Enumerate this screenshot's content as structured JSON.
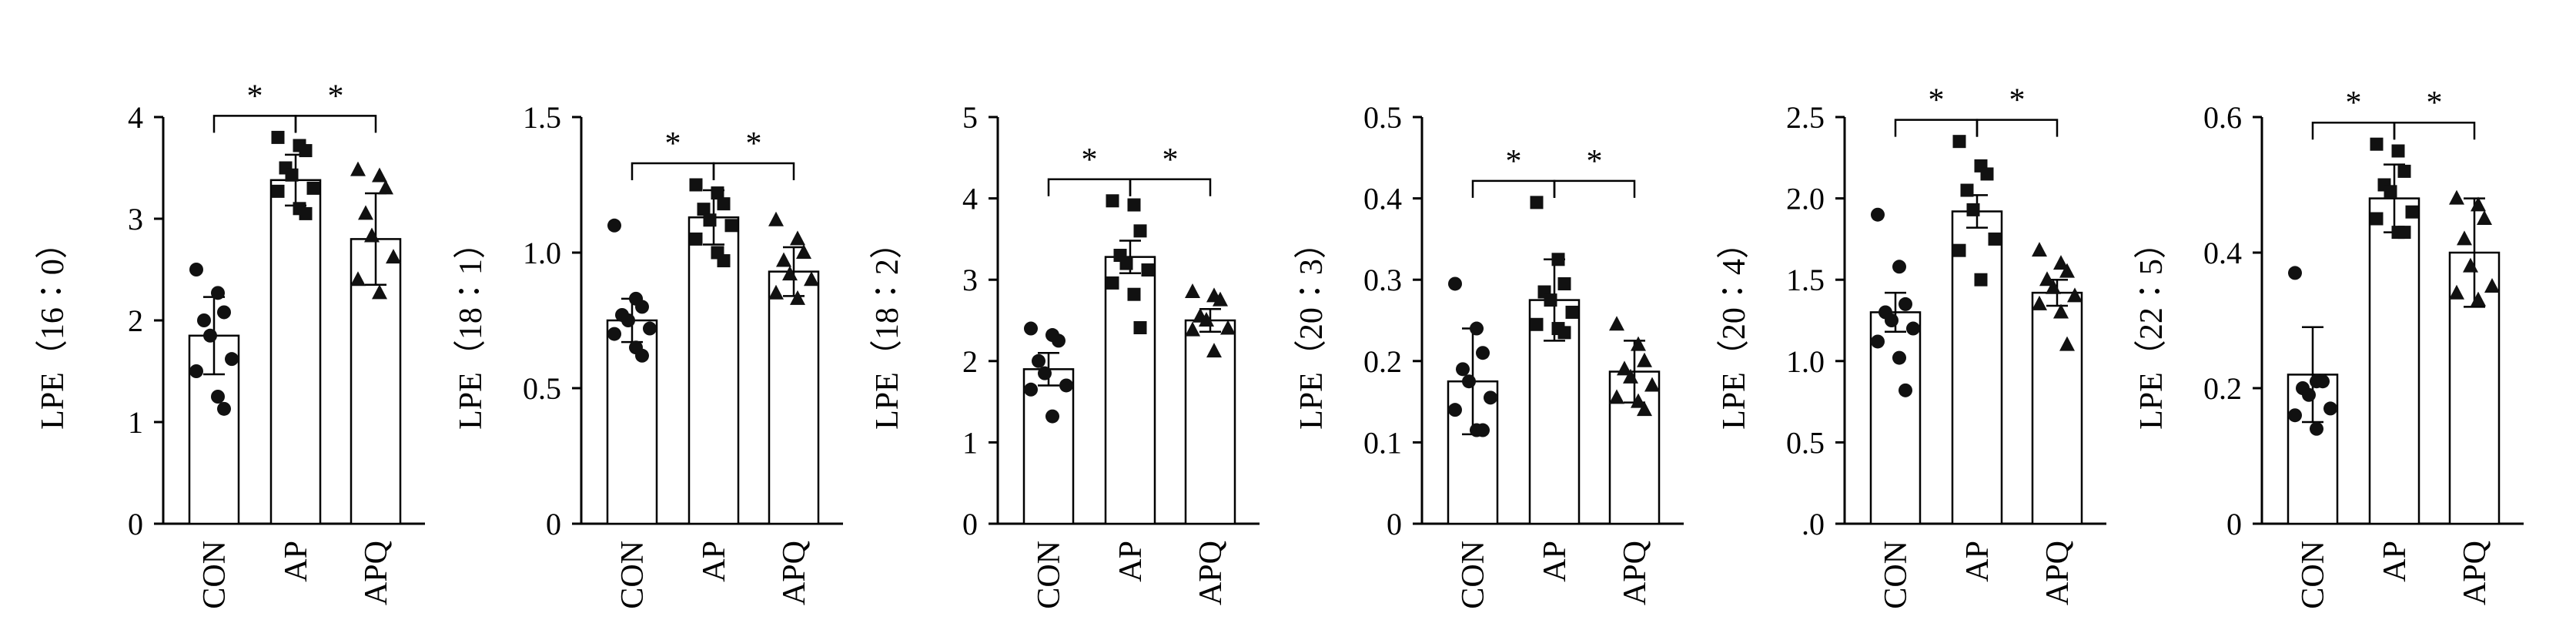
{
  "chart_data": [
    {
      "type": "bar",
      "ylabel": "LPE（16∶0）",
      "categories": [
        "CON",
        "AP",
        "APQ"
      ],
      "ylim": [
        0,
        4
      ],
      "yticks": [
        0,
        1,
        2,
        3,
        4
      ],
      "ytick_labels": [
        "0",
        "1",
        "2",
        "3",
        "4"
      ],
      "means": [
        1.85,
        3.38,
        2.8
      ],
      "sd": [
        0.38,
        0.25,
        0.45
      ],
      "points": [
        [
          2.5,
          2.27,
          2.08,
          2.0,
          1.85,
          1.62,
          1.5,
          1.25,
          1.13
        ],
        [
          3.8,
          3.72,
          3.67,
          3.5,
          3.43,
          3.3,
          3.27,
          3.1,
          3.05
        ],
        [
          3.48,
          3.42,
          3.3,
          3.05,
          2.83,
          2.62,
          2.4,
          2.27
        ]
      ],
      "significance": [
        {
          "from": 0,
          "to": 1,
          "label": "*"
        },
        {
          "from": 1,
          "to": 2,
          "label": "*"
        }
      ]
    },
    {
      "type": "bar",
      "ylabel": "LPE（18∶1）",
      "categories": [
        "CON",
        "AP",
        "APQ"
      ],
      "ylim": [
        0,
        1.5
      ],
      "yticks": [
        0,
        0.5,
        1.0,
        1.5
      ],
      "ytick_labels": [
        "0",
        "0.5",
        "1.0",
        "1.5"
      ],
      "means": [
        0.75,
        1.13,
        0.93
      ],
      "sd": [
        0.08,
        0.1,
        0.09
      ],
      "points": [
        [
          1.1,
          0.83,
          0.8,
          0.77,
          0.75,
          0.72,
          0.7,
          0.65,
          0.62
        ],
        [
          1.25,
          1.22,
          1.18,
          1.16,
          1.12,
          1.1,
          1.05,
          1.0,
          0.97
        ],
        [
          1.12,
          1.05,
          1.0,
          0.97,
          0.92,
          0.9,
          0.85,
          0.83
        ]
      ],
      "significance": [
        {
          "from": 0,
          "to": 1,
          "label": "*"
        },
        {
          "from": 1,
          "to": 2,
          "label": "*"
        }
      ]
    },
    {
      "type": "bar",
      "ylabel": "LPE（18∶2）",
      "categories": [
        "CON",
        "AP",
        "APQ"
      ],
      "ylim": [
        0,
        5
      ],
      "yticks": [
        0,
        1,
        2,
        3,
        4,
        5
      ],
      "ytick_labels": [
        "0",
        "1",
        "2",
        "3",
        "4",
        "5"
      ],
      "means": [
        1.9,
        3.28,
        2.5
      ],
      "sd": [
        0.2,
        0.2,
        0.14
      ],
      "points": [
        [
          2.4,
          2.32,
          2.25,
          2.0,
          1.85,
          1.7,
          1.65,
          1.32
        ],
        [
          3.97,
          3.92,
          3.6,
          3.3,
          3.2,
          3.12,
          2.96,
          2.82,
          2.41
        ],
        [
          2.85,
          2.8,
          2.75,
          2.55,
          2.5,
          2.4,
          2.38,
          2.12
        ]
      ],
      "significance": [
        {
          "from": 0,
          "to": 1,
          "label": "*"
        },
        {
          "from": 1,
          "to": 2,
          "label": "*"
        }
      ]
    },
    {
      "type": "bar",
      "ylabel": "LPE（20∶3）",
      "categories": [
        "CON",
        "AP",
        "APQ"
      ],
      "ylim": [
        0,
        0.5
      ],
      "yticks": [
        0,
        0.1,
        0.2,
        0.3,
        0.4,
        0.5
      ],
      "ytick_labels": [
        "0",
        "0.1",
        "0.2",
        "0.3",
        "0.4",
        "0.5"
      ],
      "means": [
        0.175,
        0.275,
        0.187
      ],
      "sd": [
        0.065,
        0.05,
        0.038
      ],
      "points": [
        [
          0.295,
          0.24,
          0.21,
          0.19,
          0.175,
          0.155,
          0.14,
          0.115,
          0.115
        ],
        [
          0.395,
          0.325,
          0.295,
          0.285,
          0.275,
          0.26,
          0.245,
          0.24,
          0.235
        ],
        [
          0.245,
          0.22,
          0.2,
          0.19,
          0.18,
          0.17,
          0.155,
          0.15,
          0.14
        ]
      ],
      "significance": [
        {
          "from": 0,
          "to": 1,
          "label": "*"
        },
        {
          "from": 1,
          "to": 2,
          "label": "*"
        }
      ]
    },
    {
      "type": "bar",
      "ylabel": "LPE（20∶4）",
      "categories": [
        "CON",
        "AP",
        "APQ"
      ],
      "ylim": [
        0,
        2.5
      ],
      "yticks": [
        0,
        0.5,
        1.0,
        1.5,
        2.0,
        2.5
      ],
      "ytick_labels": [
        ".0",
        "0.5",
        "1.0",
        "1.5",
        "2.0",
        "2.5"
      ],
      "means": [
        1.3,
        1.92,
        1.42
      ],
      "sd": [
        0.12,
        0.1,
        0.08
      ],
      "points": [
        [
          1.9,
          1.58,
          1.35,
          1.3,
          1.25,
          1.2,
          1.12,
          1.02,
          0.82
        ],
        [
          2.35,
          2.2,
          2.15,
          2.05,
          1.93,
          1.75,
          1.68,
          1.5
        ],
        [
          1.68,
          1.6,
          1.55,
          1.5,
          1.45,
          1.4,
          1.35,
          1.3,
          1.1
        ]
      ],
      "significance": [
        {
          "from": 0,
          "to": 1,
          "label": "*"
        },
        {
          "from": 1,
          "to": 2,
          "label": "*"
        }
      ]
    },
    {
      "type": "bar",
      "ylabel": "LPE（22∶5）",
      "categories": [
        "CON",
        "AP",
        "APQ"
      ],
      "ylim": [
        0,
        0.6
      ],
      "yticks": [
        0,
        0.2,
        0.4,
        0.6
      ],
      "ytick_labels": [
        "0",
        "0.2",
        "0.4",
        "0.6"
      ],
      "means": [
        0.22,
        0.48,
        0.4
      ],
      "sd": [
        0.07,
        0.05,
        0.08
      ],
      "points": [
        [
          0.37,
          0.21,
          0.21,
          0.2,
          0.19,
          0.17,
          0.16,
          0.14
        ],
        [
          0.56,
          0.55,
          0.52,
          0.5,
          0.49,
          0.46,
          0.45,
          0.43,
          0.43
        ],
        [
          0.48,
          0.47,
          0.45,
          0.42,
          0.38,
          0.35,
          0.34,
          0.33
        ]
      ],
      "significance": [
        {
          "from": 0,
          "to": 1,
          "label": "*"
        },
        {
          "from": 1,
          "to": 2,
          "label": "*"
        }
      ]
    }
  ]
}
